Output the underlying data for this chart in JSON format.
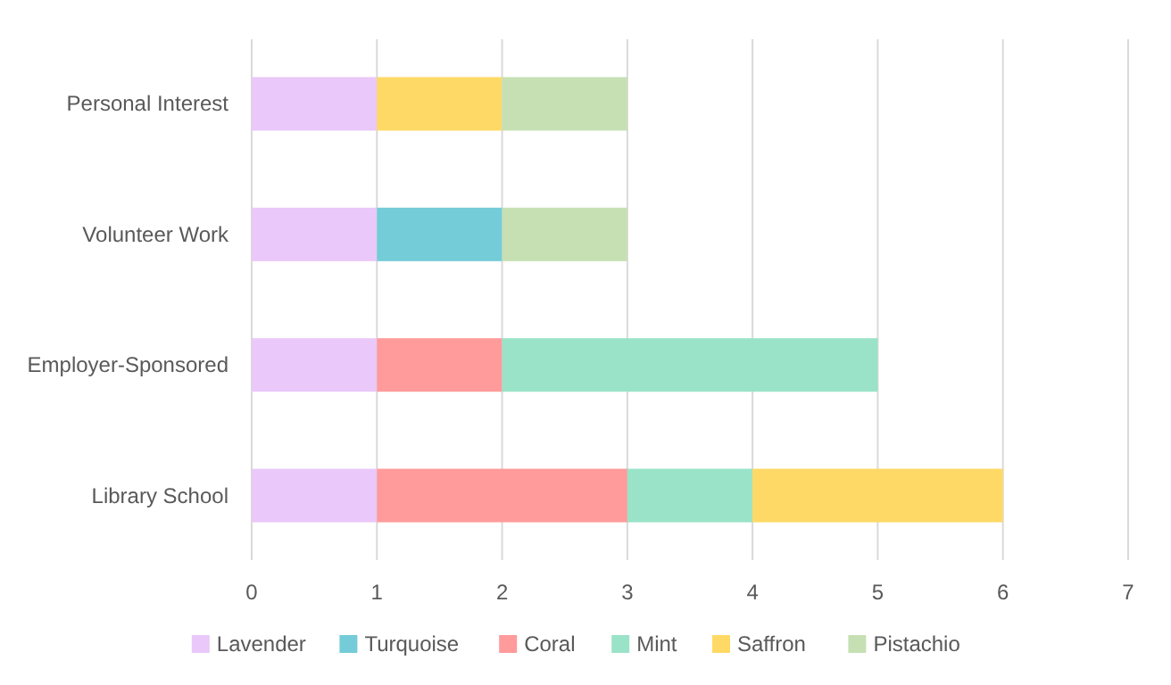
{
  "chart_data": {
    "type": "bar",
    "orientation": "horizontal",
    "stacked": true,
    "categories": [
      "Personal Interest",
      "Volunteer Work",
      "Employer-Sponsored",
      "Library School"
    ],
    "series": [
      {
        "name": "Lavender",
        "color": "#eac8f9",
        "values": [
          1,
          1,
          1,
          1
        ]
      },
      {
        "name": "Turquoise",
        "color": "#74ccd8",
        "values": [
          0,
          1,
          0,
          0
        ]
      },
      {
        "name": "Coral",
        "color": "#ff9b9b",
        "values": [
          0,
          0,
          1,
          2
        ]
      },
      {
        "name": "Mint",
        "color": "#9ae3c8",
        "values": [
          0,
          0,
          3,
          1
        ]
      },
      {
        "name": "Saffron",
        "color": "#ffd966",
        "values": [
          1,
          0,
          0,
          2
        ]
      },
      {
        "name": "Pistachio",
        "color": "#c6e0b4",
        "values": [
          1,
          1,
          0,
          0
        ]
      }
    ],
    "xlim": [
      0,
      7
    ],
    "xticks": [
      0,
      1,
      2,
      3,
      4,
      5,
      6,
      7
    ],
    "grid": "x",
    "legend": "bottom"
  }
}
